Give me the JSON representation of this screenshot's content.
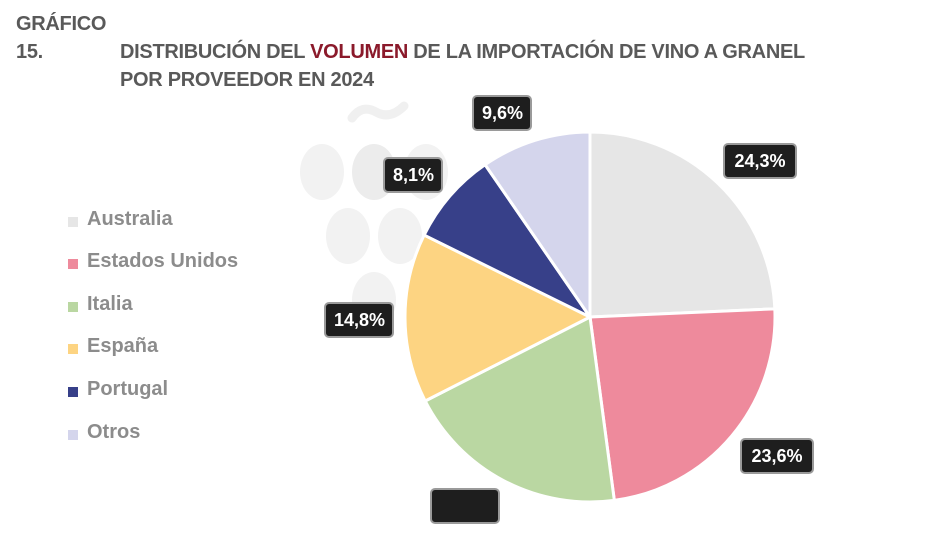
{
  "title": {
    "prefix": "GRÁFICO 15.",
    "line1_a": "DISTRIBUCIÓN DEL ",
    "line1_highlight": "VOLUMEN",
    "line1_b": " DE LA IMPORTACIÓN DE VINO A GRANEL",
    "line2": "POR PROVEEDOR EN 2024",
    "highlight_color": "#8b1a2b"
  },
  "chart_data": {
    "type": "pie",
    "title": "DISTRIBUCIÓN DEL VOLUMEN DE LA IMPORTACIÓN DE VINO A GRANEL POR PROVEEDOR EN 2024",
    "legend_position": "left",
    "start": "top",
    "direction": "clockwise",
    "slices": [
      {
        "name": "Australia",
        "value": 24.3,
        "label": "24,3%",
        "color": "#e6e6e6"
      },
      {
        "name": "Estados Unidos",
        "value": 23.6,
        "label": "23,6%",
        "color": "#ee8a9c"
      },
      {
        "name": "Italia",
        "value": 19.6,
        "label": "",
        "color": "#bad7a2"
      },
      {
        "name": "España",
        "value": 14.8,
        "label": "14,8%",
        "color": "#fdd482"
      },
      {
        "name": "Portugal",
        "value": 8.1,
        "label": "8,1%",
        "color": "#374089"
      },
      {
        "name": "Otros",
        "value": 9.6,
        "label": "9,6%",
        "color": "#d4d5ec"
      }
    ]
  }
}
